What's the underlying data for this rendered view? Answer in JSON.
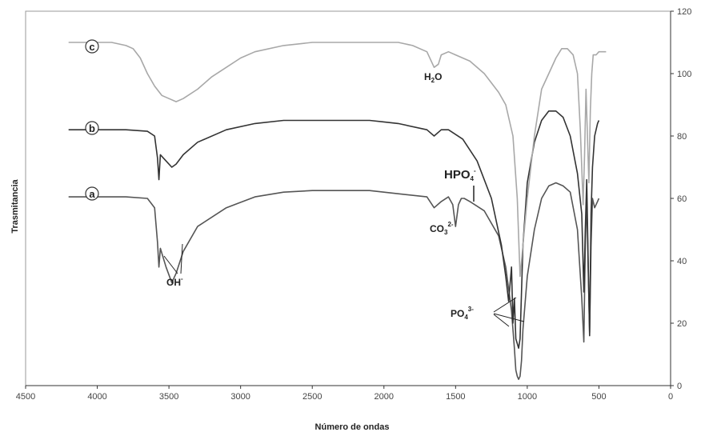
{
  "chart_data": {
    "type": "line",
    "xlabel": "Número de ondas",
    "ylabel": "Trasmitancia",
    "xlim": [
      4500,
      0
    ],
    "ylim": [
      0,
      120
    ],
    "x_ticks": [
      "4500",
      "4000",
      "3500",
      "3000",
      "2500",
      "2000",
      "1500",
      "1000",
      "500",
      "0"
    ],
    "y_ticks": [
      "0",
      "20",
      "40",
      "60",
      "80",
      "100",
      "120"
    ],
    "grid": false,
    "series": [
      {
        "name": "a",
        "color": "#555555",
        "x": [
          4200,
          3800,
          3650,
          3600,
          3580,
          3570,
          3560,
          3520,
          3480,
          3450,
          3400,
          3300,
          3100,
          2900,
          2700,
          2500,
          2300,
          2100,
          2000,
          1900,
          1700,
          1650,
          1600,
          1550,
          1520,
          1500,
          1480,
          1460,
          1440,
          1400,
          1300,
          1200,
          1150,
          1110,
          1090,
          1080,
          1070,
          1060,
          1050,
          1040,
          1030,
          1000,
          950,
          900,
          850,
          800,
          750,
          700,
          650,
          620,
          605,
          595,
          585,
          575,
          565,
          555,
          545,
          530,
          510,
          500
        ],
        "y": [
          60.5,
          60.5,
          60,
          57,
          46,
          38,
          44,
          38,
          33,
          36,
          43,
          51,
          57,
          60.5,
          62,
          62.5,
          62.5,
          62.5,
          62,
          61.5,
          60.5,
          57,
          59,
          60.5,
          58,
          51,
          58,
          60,
          60,
          59,
          56,
          48,
          38,
          24,
          12,
          5,
          3,
          2,
          3,
          8,
          18,
          35,
          50,
          60,
          64,
          65,
          64,
          62,
          50,
          28,
          14,
          45,
          60,
          38,
          17,
          45,
          60,
          57,
          59,
          60
        ]
      },
      {
        "name": "b",
        "color": "#333333",
        "x": [
          4200,
          3800,
          3650,
          3600,
          3580,
          3570,
          3560,
          3520,
          3480,
          3450,
          3400,
          3300,
          3100,
          2900,
          2700,
          2500,
          2300,
          2100,
          2000,
          1900,
          1700,
          1650,
          1600,
          1550,
          1450,
          1350,
          1250,
          1180,
          1150,
          1130,
          1110,
          1100,
          1090,
          1080,
          1060,
          1050,
          1040,
          1030,
          1000,
          950,
          900,
          850,
          800,
          750,
          700,
          650,
          620,
          605,
          595,
          585,
          575,
          565,
          555,
          545,
          530,
          510,
          500
        ],
        "y": [
          82,
          82,
          81.5,
          80,
          73,
          66,
          74,
          72,
          70,
          71,
          74,
          78,
          82,
          84,
          85,
          85,
          85,
          85,
          84.5,
          84,
          82,
          80,
          82,
          82,
          79,
          72,
          60,
          45,
          35,
          27,
          38,
          20,
          28,
          15,
          12,
          15,
          30,
          45,
          65,
          78,
          85,
          88,
          88,
          86,
          80,
          68,
          55,
          30,
          50,
          66,
          40,
          16,
          55,
          70,
          80,
          84,
          85
        ]
      },
      {
        "name": "c",
        "color": "#a8a8a8",
        "x": [
          4200,
          3900,
          3800,
          3750,
          3700,
          3650,
          3600,
          3550,
          3500,
          3450,
          3400,
          3300,
          3200,
          3100,
          3000,
          2900,
          2700,
          2500,
          2300,
          2100,
          1900,
          1800,
          1700,
          1650,
          1620,
          1600,
          1550,
          1500,
          1400,
          1300,
          1200,
          1150,
          1100,
          1070,
          1050,
          1030,
          1000,
          950,
          900,
          850,
          800,
          760,
          720,
          680,
          650,
          630,
          610,
          600,
          590,
          580,
          570,
          560,
          550,
          540,
          520,
          500,
          450
        ],
        "y": [
          110,
          110,
          109,
          108,
          105,
          100,
          96,
          93,
          92,
          91,
          92,
          95,
          99,
          102,
          105,
          107,
          109,
          110,
          110,
          110,
          110,
          109,
          107,
          102,
          103,
          106,
          107,
          106,
          104,
          100,
          94,
          90,
          80,
          60,
          35,
          45,
          60,
          80,
          95,
          100,
          105,
          108,
          108,
          106,
          100,
          82,
          58,
          74,
          95,
          80,
          65,
          88,
          100,
          106,
          106,
          107,
          107
        ]
      }
    ],
    "annotations": {
      "oh": "OH",
      "oh_sup": "-",
      "h2o_h": "H",
      "h2o_sub": "2",
      "h2o_o": "O",
      "hpo4": "HPO",
      "hpo4_sub": "4",
      "hpo4_sup": "-",
      "co3": "CO",
      "co3_sub": "3",
      "co3_sup": "2-",
      "po4": "PO",
      "po4_sub": "4",
      "po4_sup": "3-",
      "label_a": "a",
      "label_b": "b",
      "label_c": "c"
    }
  }
}
